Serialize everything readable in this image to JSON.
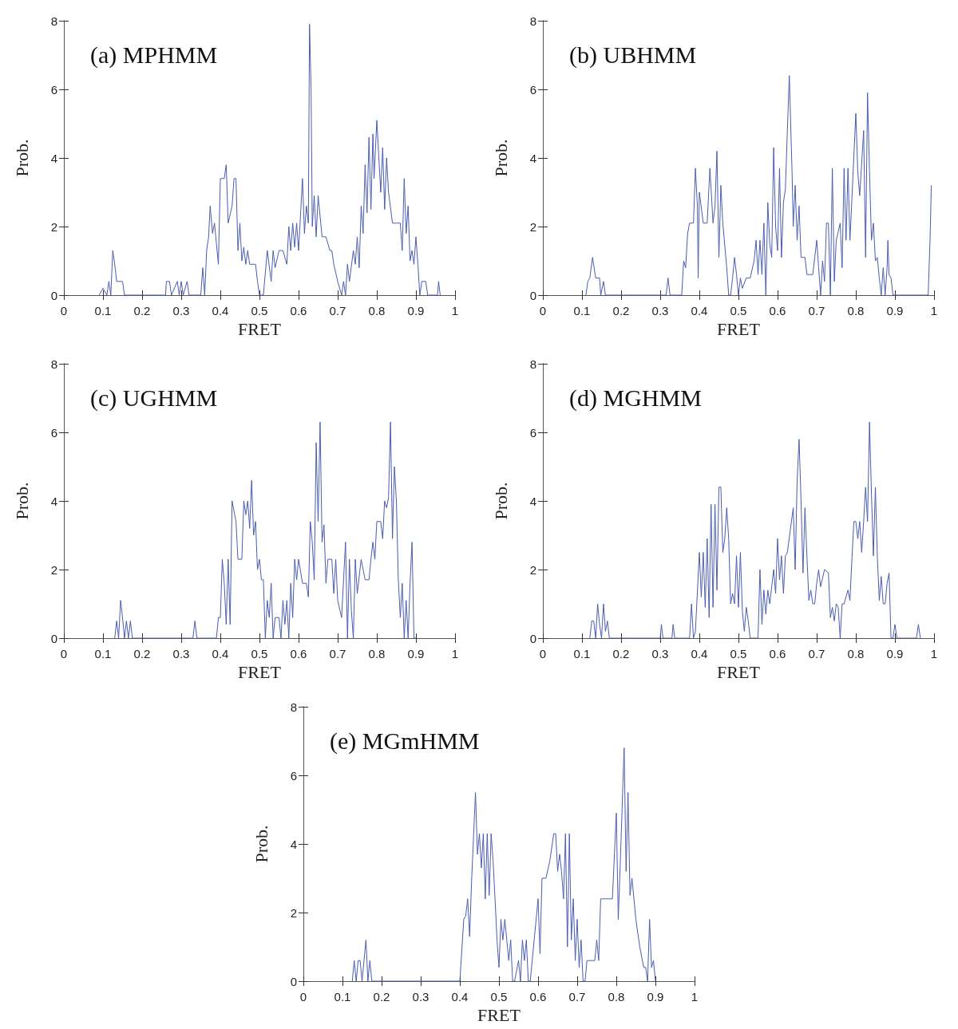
{
  "chart_data": [
    {
      "type": "line",
      "title": "(a) MPHMM",
      "xlabel": "FRET",
      "ylabel": "Prob.",
      "color": "#4a5db0",
      "xlim": [
        0,
        1
      ],
      "xticks": [
        0,
        0.1,
        0.2,
        0.3,
        0.4,
        0.5,
        0.6,
        0.7,
        0.8,
        0.9,
        1
      ],
      "ylim": [
        0,
        8
      ],
      "yticks": [
        0,
        2,
        4,
        6,
        8
      ],
      "x": [
        0.09,
        0.1,
        0.11,
        0.115,
        0.12,
        0.125,
        0.13,
        0.135,
        0.15,
        0.155,
        0.26,
        0.262,
        0.27,
        0.275,
        0.29,
        0.295,
        0.3,
        0.305,
        0.315,
        0.32,
        0.35,
        0.355,
        0.36,
        0.365,
        0.37,
        0.374,
        0.38,
        0.385,
        0.39,
        0.395,
        0.4,
        0.41,
        0.415,
        0.42,
        0.43,
        0.435,
        0.44,
        0.445,
        0.45,
        0.455,
        0.46,
        0.465,
        0.47,
        0.475,
        0.49,
        0.495,
        0.5,
        0.51,
        0.52,
        0.53,
        0.535,
        0.54,
        0.55,
        0.56,
        0.57,
        0.575,
        0.58,
        0.585,
        0.59,
        0.595,
        0.6,
        0.61,
        0.615,
        0.62,
        0.625,
        0.628,
        0.632,
        0.635,
        0.64,
        0.645,
        0.65,
        0.66,
        0.67,
        0.68,
        0.685,
        0.69,
        0.7,
        0.71,
        0.715,
        0.72,
        0.725,
        0.73,
        0.74,
        0.745,
        0.75,
        0.755,
        0.76,
        0.765,
        0.77,
        0.775,
        0.78,
        0.785,
        0.79,
        0.793,
        0.8,
        0.81,
        0.815,
        0.82,
        0.825,
        0.83,
        0.84,
        0.85,
        0.86,
        0.865,
        0.87,
        0.875,
        0.88,
        0.885,
        0.89,
        0.895,
        0.9,
        0.905,
        0.91,
        0.915,
        0.925,
        0.93,
        0.955,
        0.958,
        0.962
      ],
      "values": [
        0,
        0.2,
        0,
        0.4,
        0,
        1.3,
        0.9,
        0.4,
        0.4,
        0,
        0,
        0.4,
        0.4,
        0,
        0.4,
        0,
        0.4,
        0,
        0.4,
        0,
        0,
        0.8,
        0,
        1.3,
        1.7,
        2.6,
        1.8,
        2.1,
        1.5,
        0.9,
        3.4,
        3.4,
        3.8,
        2.1,
        2.6,
        3.4,
        3.4,
        1.3,
        2.1,
        1,
        1.4,
        0.9,
        1.3,
        0.9,
        0.9,
        0.4,
        0,
        0,
        1.3,
        0.4,
        1.3,
        0.8,
        1.3,
        1.3,
        0.9,
        2,
        1.3,
        2.1,
        1.4,
        2.1,
        1.3,
        3.4,
        1.8,
        2.6,
        2.1,
        7.9,
        6,
        2,
        2.9,
        1.7,
        2.9,
        1.7,
        1.7,
        1.3,
        1.3,
        0.9,
        0.4,
        0,
        0.4,
        0,
        0.9,
        0.4,
        1.3,
        0.9,
        1.7,
        0.8,
        2.6,
        1.8,
        3.8,
        2.4,
        4.6,
        2.5,
        4.7,
        3.4,
        5.1,
        3,
        4.3,
        2.5,
        4,
        3,
        2.1,
        2.1,
        2.1,
        1.3,
        3.4,
        1.8,
        2.6,
        1,
        1.3,
        0.9,
        1.7,
        0.9,
        0,
        0.4,
        0.4,
        0,
        0,
        0.4,
        0
      ]
    },
    {
      "type": "line",
      "title": "(b) UBHMM",
      "xlabel": "FRET",
      "ylabel": "Prob.",
      "color": "#4a5db0",
      "xlim": [
        0,
        1
      ],
      "xticks": [
        0,
        0.1,
        0.2,
        0.3,
        0.4,
        0.5,
        0.6,
        0.7,
        0.8,
        0.9,
        1
      ],
      "ylim": [
        0,
        8
      ],
      "yticks": [
        0,
        2,
        4,
        6,
        8
      ],
      "x": [
        0.11,
        0.115,
        0.12,
        0.127,
        0.135,
        0.145,
        0.148,
        0.155,
        0.16,
        0.315,
        0.32,
        0.325,
        0.355,
        0.36,
        0.365,
        0.37,
        0.375,
        0.385,
        0.39,
        0.395,
        0.397,
        0.4,
        0.41,
        0.42,
        0.427,
        0.435,
        0.44,
        0.445,
        0.45,
        0.455,
        0.46,
        0.47,
        0.475,
        0.48,
        0.485,
        0.49,
        0.495,
        0.5,
        0.505,
        0.51,
        0.52,
        0.53,
        0.54,
        0.545,
        0.55,
        0.555,
        0.56,
        0.565,
        0.57,
        0.575,
        0.58,
        0.585,
        0.59,
        0.595,
        0.6,
        0.605,
        0.61,
        0.615,
        0.62,
        0.625,
        0.63,
        0.637,
        0.64,
        0.645,
        0.65,
        0.655,
        0.66,
        0.67,
        0.675,
        0.69,
        0.695,
        0.7,
        0.705,
        0.71,
        0.715,
        0.72,
        0.725,
        0.73,
        0.735,
        0.74,
        0.745,
        0.75,
        0.76,
        0.765,
        0.77,
        0.775,
        0.78,
        0.785,
        0.79,
        0.8,
        0.805,
        0.81,
        0.82,
        0.825,
        0.83,
        0.835,
        0.84,
        0.845,
        0.85,
        0.855,
        0.86,
        0.865,
        0.87,
        0.875,
        0.88,
        0.882,
        0.885,
        0.89,
        0.895,
        0.985,
        0.99,
        0.993
      ],
      "values": [
        0,
        0.4,
        0.5,
        1.1,
        0.5,
        0.5,
        0,
        0.4,
        0,
        0,
        0.5,
        0,
        0,
        1,
        0.8,
        1.8,
        2.1,
        2.1,
        3.7,
        2.6,
        0.5,
        3,
        2.1,
        2.1,
        3.7,
        2.1,
        2.6,
        4.2,
        1.1,
        3.2,
        2.1,
        0.8,
        0,
        0,
        0.5,
        1.1,
        0.6,
        0,
        0.5,
        0.2,
        0.5,
        0.5,
        1,
        1.6,
        0.6,
        1.6,
        0.6,
        2.1,
        0,
        2.7,
        1.5,
        1.1,
        4.3,
        2,
        1.3,
        3.7,
        1.1,
        2.7,
        3.1,
        4.8,
        6.4,
        3.6,
        2,
        3.2,
        1.6,
        2.6,
        1.1,
        1.1,
        0.6,
        0.6,
        1.1,
        1.6,
        0.8,
        0,
        1,
        0.4,
        2.1,
        2.1,
        0,
        3.7,
        0.4,
        1.6,
        2.1,
        0.8,
        3.7,
        1.6,
        3.7,
        1.6,
        2.8,
        5.3,
        3.6,
        2.9,
        4.8,
        1.1,
        5.9,
        3.6,
        1.6,
        2.1,
        1,
        1.1,
        0.5,
        0,
        0.8,
        0,
        0.8,
        1.6,
        0.6,
        0.5,
        0,
        0,
        1.7,
        3.2
      ]
    },
    {
      "type": "line",
      "title": "(c) UGHMM",
      "xlabel": "FRET",
      "ylabel": "Prob.",
      "color": "#4a5db0",
      "xlim": [
        0,
        1
      ],
      "xticks": [
        0,
        0.1,
        0.2,
        0.3,
        0.4,
        0.5,
        0.6,
        0.7,
        0.8,
        0.9,
        1
      ],
      "ylim": [
        0,
        8
      ],
      "yticks": [
        0,
        2,
        4,
        6,
        8
      ],
      "x": [
        0.13,
        0.135,
        0.14,
        0.145,
        0.15,
        0.155,
        0.16,
        0.165,
        0.17,
        0.175,
        0.33,
        0.335,
        0.34,
        0.39,
        0.395,
        0.4,
        0.405,
        0.41,
        0.415,
        0.42,
        0.425,
        0.43,
        0.44,
        0.445,
        0.455,
        0.46,
        0.465,
        0.47,
        0.475,
        0.48,
        0.485,
        0.49,
        0.495,
        0.5,
        0.505,
        0.51,
        0.515,
        0.52,
        0.525,
        0.53,
        0.535,
        0.54,
        0.55,
        0.555,
        0.56,
        0.565,
        0.57,
        0.575,
        0.58,
        0.585,
        0.59,
        0.595,
        0.6,
        0.61,
        0.62,
        0.625,
        0.63,
        0.635,
        0.64,
        0.645,
        0.65,
        0.655,
        0.66,
        0.665,
        0.67,
        0.675,
        0.685,
        0.69,
        0.695,
        0.7,
        0.71,
        0.72,
        0.725,
        0.73,
        0.735,
        0.74,
        0.745,
        0.75,
        0.76,
        0.77,
        0.78,
        0.785,
        0.79,
        0.795,
        0.8,
        0.81,
        0.815,
        0.82,
        0.825,
        0.83,
        0.835,
        0.84,
        0.845,
        0.85,
        0.855,
        0.86,
        0.865,
        0.87,
        0.875,
        0.88,
        0.885,
        0.89,
        0.895,
        0.9
      ],
      "values": [
        0,
        0.5,
        0,
        1.1,
        0.6,
        0,
        0.5,
        0,
        0.5,
        0,
        0,
        0.5,
        0,
        0,
        0.6,
        0.6,
        2.3,
        1.6,
        0.4,
        2.3,
        0.4,
        4,
        3.4,
        2.3,
        2.3,
        4,
        3.6,
        4,
        3.2,
        4.6,
        3,
        3.4,
        2,
        2.3,
        1.7,
        1.7,
        0,
        1.1,
        0.6,
        1.6,
        0,
        0.6,
        0.6,
        0,
        1.1,
        0.4,
        1.1,
        0,
        1.6,
        0.6,
        2.3,
        1.7,
        2.3,
        1.6,
        1.6,
        1.2,
        3.4,
        2.8,
        1.7,
        5.7,
        3.4,
        6.3,
        2.8,
        3.3,
        1.6,
        2.3,
        2.3,
        1.3,
        2.3,
        1.1,
        0.6,
        2.8,
        0,
        2.3,
        0.8,
        0,
        2.3,
        1.3,
        2.3,
        1.7,
        1.7,
        2.3,
        2.8,
        2.3,
        3.4,
        3.4,
        2.9,
        4,
        3.8,
        4.1,
        6.3,
        2.9,
        5,
        4,
        1.7,
        0.6,
        1.6,
        0,
        1.1,
        0,
        1.6,
        2.8,
        0,
        0
      ]
    },
    {
      "type": "line",
      "title": "(d) MGHMM",
      "xlabel": "FRET",
      "ylabel": "Prob.",
      "color": "#4a5db0",
      "xlim": [
        0,
        1
      ],
      "xticks": [
        0,
        0.1,
        0.2,
        0.3,
        0.4,
        0.5,
        0.6,
        0.7,
        0.8,
        0.9,
        1
      ],
      "ylim": [
        0,
        8
      ],
      "yticks": [
        0,
        2,
        4,
        6,
        8
      ],
      "x": [
        0.12,
        0.125,
        0.13,
        0.135,
        0.14,
        0.145,
        0.15,
        0.155,
        0.16,
        0.165,
        0.17,
        0.3,
        0.303,
        0.307,
        0.33,
        0.333,
        0.337,
        0.375,
        0.38,
        0.385,
        0.39,
        0.4,
        0.405,
        0.41,
        0.415,
        0.42,
        0.425,
        0.43,
        0.435,
        0.44,
        0.445,
        0.45,
        0.455,
        0.46,
        0.465,
        0.47,
        0.475,
        0.48,
        0.485,
        0.49,
        0.495,
        0.5,
        0.505,
        0.51,
        0.515,
        0.52,
        0.525,
        0.53,
        0.55,
        0.555,
        0.56,
        0.565,
        0.57,
        0.575,
        0.58,
        0.585,
        0.59,
        0.595,
        0.6,
        0.605,
        0.61,
        0.615,
        0.62,
        0.625,
        0.64,
        0.645,
        0.65,
        0.655,
        0.66,
        0.665,
        0.67,
        0.675,
        0.68,
        0.685,
        0.69,
        0.695,
        0.7,
        0.705,
        0.71,
        0.72,
        0.73,
        0.735,
        0.74,
        0.745,
        0.75,
        0.755,
        0.76,
        0.765,
        0.77,
        0.78,
        0.785,
        0.79,
        0.795,
        0.8,
        0.805,
        0.81,
        0.815,
        0.82,
        0.825,
        0.83,
        0.835,
        0.84,
        0.845,
        0.85,
        0.855,
        0.86,
        0.865,
        0.87,
        0.875,
        0.88,
        0.885,
        0.89,
        0.895,
        0.9,
        0.905,
        0.955,
        0.96,
        0.965
      ],
      "values": [
        0,
        0.5,
        0.5,
        0,
        1,
        0.4,
        0,
        1,
        0.2,
        0.5,
        0,
        0,
        0.4,
        0,
        0,
        0.4,
        0,
        0,
        1,
        0,
        0.2,
        2.5,
        1.2,
        2.5,
        0.9,
        2.9,
        0.6,
        3.9,
        0.9,
        3.9,
        1.4,
        4.4,
        4.4,
        2.5,
        2.9,
        3.8,
        2.9,
        1,
        1.3,
        1,
        2.4,
        0.9,
        2.5,
        0.8,
        0.2,
        0.9,
        0.5,
        0,
        0,
        2,
        0.4,
        1.4,
        0.7,
        1.4,
        1,
        1.5,
        2,
        1.3,
        2.9,
        1.7,
        2.4,
        1.3,
        2.4,
        2.5,
        3.8,
        2,
        4.6,
        5.8,
        4,
        1.9,
        3.8,
        2.4,
        1.1,
        1.4,
        1,
        1,
        1.6,
        2,
        1.5,
        2,
        1.9,
        0.6,
        0.9,
        0.5,
        1,
        0.9,
        0,
        1,
        1,
        1.4,
        1.1,
        2.3,
        3.4,
        3.4,
        2.9,
        3.4,
        2.5,
        3.4,
        4.4,
        3.4,
        6.3,
        4.2,
        2.4,
        4.4,
        2.4,
        1.1,
        1.8,
        1,
        1,
        1.6,
        1.9,
        0,
        0,
        0.4,
        0,
        0,
        0.4,
        0
      ]
    },
    {
      "type": "line",
      "title": "(e) MGmHMM",
      "xlabel": "FRET",
      "ylabel": "Prob.",
      "color": "#4a5db0",
      "xlim": [
        0,
        1
      ],
      "xticks": [
        0,
        0.1,
        0.2,
        0.3,
        0.4,
        0.5,
        0.6,
        0.7,
        0.8,
        0.9,
        1
      ],
      "ylim": [
        0,
        8
      ],
      "yticks": [
        0,
        2,
        4,
        6,
        8
      ],
      "x": [
        0.125,
        0.13,
        0.135,
        0.14,
        0.145,
        0.15,
        0.16,
        0.165,
        0.17,
        0.175,
        0.4,
        0.41,
        0.415,
        0.42,
        0.425,
        0.43,
        0.44,
        0.445,
        0.45,
        0.455,
        0.46,
        0.465,
        0.47,
        0.475,
        0.48,
        0.485,
        0.49,
        0.495,
        0.5,
        0.505,
        0.51,
        0.515,
        0.52,
        0.525,
        0.53,
        0.535,
        0.54,
        0.55,
        0.555,
        0.56,
        0.565,
        0.57,
        0.575,
        0.58,
        0.6,
        0.605,
        0.61,
        0.62,
        0.63,
        0.64,
        0.645,
        0.65,
        0.655,
        0.66,
        0.665,
        0.67,
        0.675,
        0.68,
        0.685,
        0.69,
        0.695,
        0.7,
        0.705,
        0.71,
        0.715,
        0.72,
        0.725,
        0.735,
        0.745,
        0.75,
        0.755,
        0.76,
        0.79,
        0.8,
        0.805,
        0.81,
        0.82,
        0.825,
        0.83,
        0.835,
        0.84,
        0.85,
        0.86,
        0.87,
        0.875,
        0.88,
        0.885,
        0.89,
        0.895,
        0.9
      ],
      "values": [
        0,
        0.6,
        0,
        0.6,
        0.6,
        0,
        1.2,
        0,
        0.6,
        0,
        0,
        1.8,
        1.9,
        2.4,
        1.3,
        2.9,
        5.5,
        3.7,
        4.3,
        3.3,
        4.3,
        2.4,
        4.3,
        2.5,
        4.3,
        3.5,
        2.4,
        1.2,
        0.4,
        1.8,
        1.2,
        1.8,
        1.2,
        0.6,
        1.2,
        0,
        0,
        0.6,
        0,
        1.2,
        0.6,
        1.2,
        0,
        0,
        2.4,
        0.8,
        3,
        3,
        3.5,
        4.3,
        4.3,
        3.2,
        3.7,
        3.2,
        2.4,
        4.3,
        1,
        4.3,
        1.2,
        2.4,
        0.6,
        1.8,
        0.4,
        1.2,
        0,
        0,
        0.6,
        0.6,
        0.6,
        1.2,
        0.6,
        2.4,
        2.4,
        4.9,
        1.8,
        3.4,
        6.8,
        3.2,
        5.5,
        2.5,
        3,
        1.8,
        1,
        0.4,
        0.4,
        0,
        1.8,
        0.4,
        0.6,
        0
      ]
    }
  ]
}
